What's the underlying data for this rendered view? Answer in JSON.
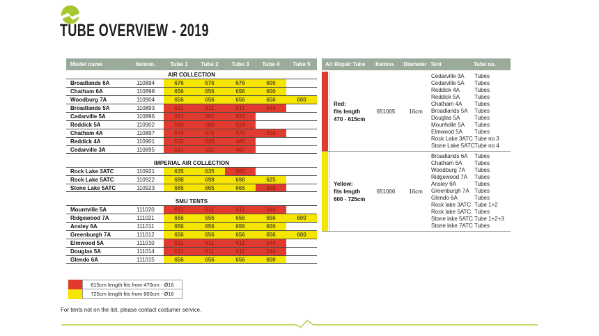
{
  "page": {
    "title": "TUBE OVERVIEW - 2019",
    "footer_note": "For tents not on the list, please contact costumer service."
  },
  "colors": {
    "header_bg": "#9bab9b",
    "red": "#e13b2f",
    "yellow": "#f6e500",
    "red_text": "#a3251d",
    "yellow_text": "#55551f",
    "brand_green": "#a5c72f",
    "divider_green": "#b5cc33"
  },
  "left_table": {
    "headers": [
      "Model name",
      "Itemno.",
      "Tube 1",
      "Tube 2",
      "Tube 3",
      "Tube 4",
      "Tube 5"
    ],
    "sections": [
      {
        "title": "AIR COLLECTION",
        "rows": [
          {
            "model": "Broadlands 6A",
            "itemno": "110894",
            "tubes": [
              [
                "676",
                "y"
              ],
              [
                "676",
                "y"
              ],
              [
                "676",
                "y"
              ],
              [
                "600",
                "y"
              ],
              null
            ]
          },
          {
            "model": "Chatham 6A",
            "itemno": "110898",
            "tubes": [
              [
                "656",
                "y"
              ],
              [
                "656",
                "y"
              ],
              [
                "656",
                "y"
              ],
              [
                "600",
                "y"
              ],
              null
            ]
          },
          {
            "model": "Woodburg 7A",
            "itemno": "110904",
            "tubes": [
              [
                "656",
                "y"
              ],
              [
                "656",
                "y"
              ],
              [
                "656",
                "y"
              ],
              [
                "656",
                "y"
              ],
              [
                "600",
                "y"
              ]
            ]
          },
          {
            "model": "Broadlands 5A",
            "itemno": "110893",
            "tubes": [
              [
                "611",
                "r"
              ],
              [
                "611",
                "r"
              ],
              [
                "611",
                "r"
              ],
              [
                "544",
                "r"
              ],
              null
            ]
          },
          {
            "model": "Cedarville 5A",
            "itemno": "110896",
            "tubes": [
              [
                "581",
                "r"
              ],
              [
                "581",
                "r"
              ],
              [
                "524",
                "r"
              ],
              null,
              null
            ]
          },
          {
            "model": "Reddick 5A",
            "itemno": "110902",
            "tubes": [
              [
                "580",
                "r"
              ],
              [
                "580",
                "r"
              ],
              [
                "524",
                "r"
              ],
              null,
              null
            ]
          },
          {
            "model": "Chatham 4A",
            "itemno": "110897",
            "tubes": [
              [
                "576",
                "r"
              ],
              [
                "576",
                "r"
              ],
              [
                "576",
                "r"
              ],
              [
                "516",
                "r"
              ],
              null
            ]
          },
          {
            "model": "Reddick 4A",
            "itemno": "110901",
            "tubes": [
              [
                "535",
                "r"
              ],
              [
                "535",
                "r"
              ],
              [
                "486",
                "r"
              ],
              null,
              null
            ]
          },
          {
            "model": "Cedarville 3A",
            "itemno": "110895",
            "tubes": [
              [
                "531",
                "r"
              ],
              [
                "531",
                "r"
              ],
              [
                "487",
                "r"
              ],
              null,
              null
            ]
          }
        ]
      },
      {
        "title": "IMPERIAL AIR COLLECTION",
        "rows": [
          {
            "model": "Rock Lake 3ATC",
            "itemno": "110921",
            "tubes": [
              [
                "635",
                "y"
              ],
              [
                "635",
                "y"
              ],
              [
                "585",
                "r"
              ],
              null,
              null
            ]
          },
          {
            "model": "Rock Lake 5ATC",
            "itemno": "110922",
            "tubes": [
              [
                "698",
                "y"
              ],
              [
                "698",
                "y"
              ],
              [
                "698",
                "y"
              ],
              [
                "625",
                "y"
              ],
              null
            ]
          },
          {
            "model": "Stone Lake 5ATC",
            "itemno": "110923",
            "tubes": [
              [
                "665",
                "y"
              ],
              [
                "665",
                "y"
              ],
              [
                "665",
                "y"
              ],
              [
                "605",
                "r"
              ],
              null
            ]
          }
        ]
      },
      {
        "title": "SMU TENTS",
        "rows": [
          {
            "model": "Mountville 5A",
            "itemno": "111020",
            "tubes": [
              [
                "611",
                "r"
              ],
              [
                "611",
                "r"
              ],
              [
                "611",
                "r"
              ],
              [
                "544",
                "r"
              ],
              null
            ]
          },
          {
            "model": "Ridgewood 7A",
            "itemno": "111021",
            "tubes": [
              [
                "656",
                "y"
              ],
              [
                "656",
                "y"
              ],
              [
                "656",
                "y"
              ],
              [
                "656",
                "y"
              ],
              [
                "600",
                "y"
              ]
            ]
          },
          {
            "model": "Ansley 6A",
            "itemno": "111011",
            "tubes": [
              [
                "656",
                "y"
              ],
              [
                "656",
                "y"
              ],
              [
                "656",
                "y"
              ],
              [
                "600",
                "y"
              ],
              null
            ]
          },
          {
            "model": "Greenburgh 7A",
            "itemno": "111012",
            "tubes": [
              [
                "656",
                "y"
              ],
              [
                "656",
                "y"
              ],
              [
                "656",
                "y"
              ],
              [
                "656",
                "y"
              ],
              [
                "600",
                "y"
              ]
            ]
          },
          {
            "model": "Elmwood 5A",
            "itemno": "111010",
            "tubes": [
              [
                "611",
                "r"
              ],
              [
                "611",
                "r"
              ],
              [
                "611",
                "r"
              ],
              [
                "544",
                "r"
              ],
              null
            ]
          },
          {
            "model": "Douglas 5A",
            "itemno": "111014",
            "tubes": [
              [
                "611",
                "r"
              ],
              [
                "611",
                "r"
              ],
              [
                "611",
                "r"
              ],
              [
                "544",
                "r"
              ],
              null
            ]
          },
          {
            "model": "Glendo 6A",
            "itemno": "111015",
            "tubes": [
              [
                "656",
                "y"
              ],
              [
                "656",
                "y"
              ],
              [
                "656",
                "y"
              ],
              [
                "600",
                "y"
              ],
              null
            ]
          }
        ]
      }
    ]
  },
  "right_table": {
    "headers": [
      "Air Repair Tube",
      "Itemno.",
      "Diameter",
      "Tent",
      "Tube no."
    ],
    "groups": [
      {
        "color": "r",
        "label_lines": [
          "Red:",
          "fits length",
          "470 - 615cm"
        ],
        "itemno": "651005",
        "diameter": "16cm",
        "tents": [
          {
            "tent": "Cedarville 3A",
            "tube": "Tubes"
          },
          {
            "tent": "Cedarville 5A",
            "tube": "Tubes"
          },
          {
            "tent": "Reddick 4A",
            "tube": "Tubes"
          },
          {
            "tent": "Reddick 5A",
            "tube": "Tubes"
          },
          {
            "tent": "Chatham 4A",
            "tube": "Tubes"
          },
          {
            "tent": "Broadlands 5A",
            "tube": "Tubes"
          },
          {
            "tent": "Douglas 5A",
            "tube": "Tubes"
          },
          {
            "tent": "Mountville 5A",
            "tube": "Tubes"
          },
          {
            "tent": "Elmwood 5A",
            "tube": "Tubes"
          },
          {
            "tent": "Rock Lake 3ATC",
            "tube": "Tube no 3"
          },
          {
            "tent": "Stone Lake 5ATC",
            "tube": "Tube no 4"
          }
        ]
      },
      {
        "color": "y",
        "label_lines": [
          "Yellow:",
          "fits length",
          "600 - 725cm"
        ],
        "itemno": "651006",
        "diameter": "16cm",
        "tents": [
          {
            "tent": "Broadlands 6A",
            "tube": "Tubes"
          },
          {
            "tent": "Chatham 6A",
            "tube": "Tubes"
          },
          {
            "tent": "Woodburg 7A",
            "tube": "Tubes"
          },
          {
            "tent": "Ridgewood 7A",
            "tube": "Tubes"
          },
          {
            "tent": "Ansley 6A",
            "tube": "Tubes"
          },
          {
            "tent": "Greenburgh 7A",
            "tube": "Tubes"
          },
          {
            "tent": "Glendo 6A",
            "tube": "Tubes"
          },
          {
            "tent": "Rock lake 3ATC",
            "tube": "Tube 1+2"
          },
          {
            "tent": "Rock lake 5ATC",
            "tube": "Tubes"
          },
          {
            "tent": "Stone lake 5ATC",
            "tube": "Tube 1+2+3"
          },
          {
            "tent": "Stone lake 7ATC",
            "tube": "Tubes"
          }
        ]
      }
    ]
  },
  "legend": [
    {
      "color": "r",
      "text": "615cm length fits from 470cm - Ø16"
    },
    {
      "color": "y",
      "text": "725cm length fits from 600cm - Ø16"
    }
  ]
}
